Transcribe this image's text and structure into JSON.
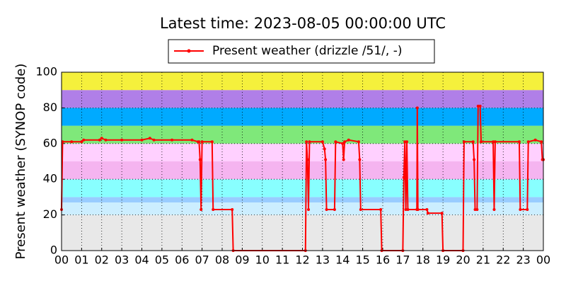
{
  "chart_data": {
    "type": "line",
    "title": "Latest time: 2023-08-05 00:00:00 UTC",
    "ylabel": "Present weather (SYNOP code)",
    "xlim": [
      0,
      24
    ],
    "ylim": [
      0,
      100
    ],
    "xticks": [
      {
        "value": 0,
        "label": "00"
      },
      {
        "value": 1,
        "label": "01"
      },
      {
        "value": 2,
        "label": "02"
      },
      {
        "value": 3,
        "label": "03"
      },
      {
        "value": 4,
        "label": "04"
      },
      {
        "value": 5,
        "label": "05"
      },
      {
        "value": 6,
        "label": "06"
      },
      {
        "value": 7,
        "label": "07"
      },
      {
        "value": 8,
        "label": "08"
      },
      {
        "value": 9,
        "label": "09"
      },
      {
        "value": 10,
        "label": "10"
      },
      {
        "value": 11,
        "label": "11"
      },
      {
        "value": 12,
        "label": "12"
      },
      {
        "value": 13,
        "label": "13"
      },
      {
        "value": 14,
        "label": "14"
      },
      {
        "value": 15,
        "label": "15"
      },
      {
        "value": 16,
        "label": "16"
      },
      {
        "value": 17,
        "label": "17"
      },
      {
        "value": 18,
        "label": "18"
      },
      {
        "value": 19,
        "label": "19"
      },
      {
        "value": 20,
        "label": "20"
      },
      {
        "value": 21,
        "label": "21"
      },
      {
        "value": 22,
        "label": "22"
      },
      {
        "value": 23,
        "label": "23"
      },
      {
        "value": 24,
        "label": "00"
      }
    ],
    "yticks": [
      0,
      20,
      40,
      60,
      80,
      100
    ],
    "grid": true,
    "legend": "top",
    "bands": [
      {
        "from": 0,
        "to": 20,
        "color": "#e8e8e8"
      },
      {
        "from": 20,
        "to": 27,
        "color": "#cceeff"
      },
      {
        "from": 27,
        "to": 30,
        "color": "#99ccff"
      },
      {
        "from": 30,
        "to": 40,
        "color": "#88ffff"
      },
      {
        "from": 40,
        "to": 50,
        "color": "#f5b4f0"
      },
      {
        "from": 50,
        "to": 60,
        "color": "#ffd0ff"
      },
      {
        "from": 60,
        "to": 70,
        "color": "#7fe87a"
      },
      {
        "from": 70,
        "to": 80,
        "color": "#00aaff"
      },
      {
        "from": 80,
        "to": 90,
        "color": "#b07fe8"
      },
      {
        "from": 90,
        "to": 100,
        "color": "#f5f03c"
      }
    ],
    "series": [
      {
        "name": "Present weather (drizzle /51/, -)",
        "color": "#ff0000",
        "x": [
          0,
          0.05,
          0.5,
          1.0,
          1.1,
          1.9,
          2.0,
          2.2,
          3.0,
          4.0,
          4.4,
          4.6,
          5.5,
          6.5,
          6.8,
          6.85,
          6.9,
          6.95,
          7.0,
          7.5,
          7.55,
          8.5,
          8.55,
          12.15,
          12.2,
          12.25,
          12.3,
          12.35,
          13.0,
          13.1,
          13.15,
          13.2,
          13.6,
          13.65,
          14.0,
          14.05,
          14.1,
          14.3,
          14.8,
          14.85,
          14.9,
          15.9,
          15.95,
          17.0,
          17.05,
          17.1,
          17.15,
          17.2,
          17.25,
          17.7,
          17.72,
          17.75,
          18.2,
          18.25,
          18.95,
          19.0,
          20.0,
          20.05,
          20.5,
          20.55,
          20.6,
          20.7,
          20.75,
          20.85,
          20.9,
          21.5,
          21.55,
          21.6,
          22.8,
          22.85,
          23.2,
          23.25,
          23.6,
          23.9,
          23.95,
          24.0
        ],
        "values": [
          23,
          61,
          61,
          61,
          62,
          62,
          63,
          62,
          62,
          62,
          63,
          62,
          62,
          62,
          61,
          61,
          51,
          23,
          61,
          61,
          23,
          23,
          0,
          0,
          61,
          51,
          23,
          61,
          61,
          57,
          51,
          23,
          23,
          61,
          60,
          51,
          61,
          62,
          61,
          51,
          23,
          23,
          0,
          0,
          41,
          61,
          23,
          61,
          23,
          23,
          80,
          23,
          23,
          21,
          21,
          0,
          0,
          61,
          61,
          51,
          23,
          23,
          81,
          81,
          61,
          61,
          23,
          61,
          61,
          23,
          23,
          61,
          62,
          61,
          51,
          51
        ]
      }
    ]
  }
}
